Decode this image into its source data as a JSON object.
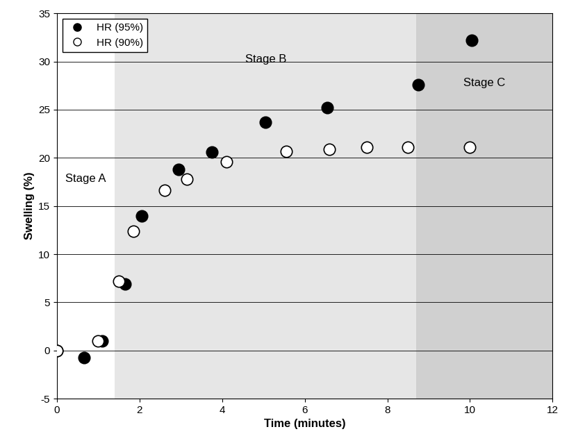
{
  "chart_data": {
    "type": "scatter",
    "x_label": "Time (minutes)",
    "y_label": "Swelling (%)",
    "series": [
      {
        "name": "HR (95%)",
        "color": "#000000",
        "marker": "o",
        "x": [
          0,
          0.65,
          1.1,
          1.65,
          2.05,
          2.95,
          3.75,
          5.05,
          6.55,
          8.75,
          10.05
        ],
        "values": [
          0,
          -0.7,
          1.0,
          6.9,
          14.0,
          18.8,
          20.6,
          23.7,
          25.2,
          27.6,
          32.2
        ]
      },
      {
        "name": "HR (90%)",
        "color": "#ffffff",
        "marker": "o",
        "x": [
          0,
          1.0,
          1.5,
          1.85,
          2.6,
          3.15,
          4.1,
          5.55,
          6.6,
          7.5,
          8.5,
          10.0
        ],
        "values": [
          0,
          1.0,
          7.2,
          12.4,
          16.6,
          17.8,
          19.6,
          20.7,
          20.9,
          21.1,
          21.1,
          21.1
        ]
      }
    ],
    "stages": [
      {
        "name": "Stage A",
        "start": 0,
        "end": 1.4,
        "color": "#ffffff"
      },
      {
        "name": "Stage B",
        "start": 1.4,
        "end": 8.7,
        "color": "#e6e6e6"
      },
      {
        "name": "Stage C",
        "start": 8.7,
        "end": 12,
        "color": "#d0d0d0"
      }
    ],
    "xlim": [
      0,
      12
    ],
    "xticks": [
      0,
      2,
      4,
      6,
      8,
      10,
      12
    ],
    "ylim": [
      -5,
      35
    ],
    "yticks": [
      -5,
      0,
      5,
      10,
      15,
      20,
      25,
      30,
      35
    ],
    "grid": true,
    "legend": "upper left"
  }
}
